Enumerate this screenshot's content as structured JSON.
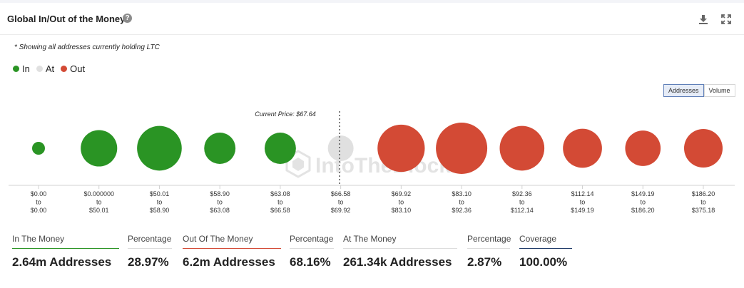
{
  "header": {
    "title": "Global In/Out of the Money"
  },
  "note": "* Showing all addresses currently holding LTC",
  "legend": [
    {
      "label": "In",
      "color": "#2a9424"
    },
    {
      "label": "At",
      "color": "#e0e0e0"
    },
    {
      "label": "Out",
      "color": "#d34a35"
    }
  ],
  "toggle": {
    "addresses": "Addresses",
    "volume": "Volume"
  },
  "watermark": "IntoTheBlock",
  "chart_data": {
    "type": "scatter",
    "title": "Global In/Out of the Money",
    "current_price_label": "Current Price: $67.64",
    "current_price": 67.64,
    "buckets": [
      {
        "from": "$0.00",
        "to_word": "to",
        "to": "$0.00",
        "status": "in",
        "rel_size": 0.25
      },
      {
        "from": "$0.000000",
        "to_word": "to",
        "to": "$50.01",
        "status": "in",
        "rel_size": 0.71
      },
      {
        "from": "$50.01",
        "to_word": "to",
        "to": "$58.90",
        "status": "in",
        "rel_size": 0.87
      },
      {
        "from": "$58.90",
        "to_word": "to",
        "to": "$63.08",
        "status": "in",
        "rel_size": 0.61
      },
      {
        "from": "$63.08",
        "to_word": "to",
        "to": "$66.58",
        "status": "in",
        "rel_size": 0.61
      },
      {
        "from": "$66.58",
        "to_word": "to",
        "to": "$69.92",
        "status": "at",
        "rel_size": 0.5
      },
      {
        "from": "$69.92",
        "to_word": "to",
        "to": "$83.10",
        "status": "out",
        "rel_size": 0.92
      },
      {
        "from": "$83.10",
        "to_word": "to",
        "to": "$92.36",
        "status": "out",
        "rel_size": 1.0
      },
      {
        "from": "$92.36",
        "to_word": "to",
        "to": "$112.14",
        "status": "out",
        "rel_size": 0.87
      },
      {
        "from": "$112.14",
        "to_word": "to",
        "to": "$149.19",
        "status": "out",
        "rel_size": 0.76
      },
      {
        "from": "$149.19",
        "to_word": "to",
        "to": "$186.20",
        "status": "out",
        "rel_size": 0.69
      },
      {
        "from": "$186.20",
        "to_word": "to",
        "to": "$375.18",
        "status": "out",
        "rel_size": 0.75
      }
    ]
  },
  "stats": [
    {
      "label": "In The Money",
      "value": "2.64m Addresses",
      "accent": "#2a9424"
    },
    {
      "label": "Percentage",
      "value": "28.97%",
      "accent": ""
    },
    {
      "label": "Out Of The Money",
      "value": "6.2m Addresses",
      "accent": "#d34a35"
    },
    {
      "label": "Percentage",
      "value": "68.16%",
      "accent": ""
    },
    {
      "label": "At The Money",
      "value": "261.34k Addresses",
      "accent": ""
    },
    {
      "label": "Percentage",
      "value": "2.87%",
      "accent": ""
    },
    {
      "label": "Coverage",
      "value": "100.00%",
      "accent": "#1f3a68"
    }
  ]
}
